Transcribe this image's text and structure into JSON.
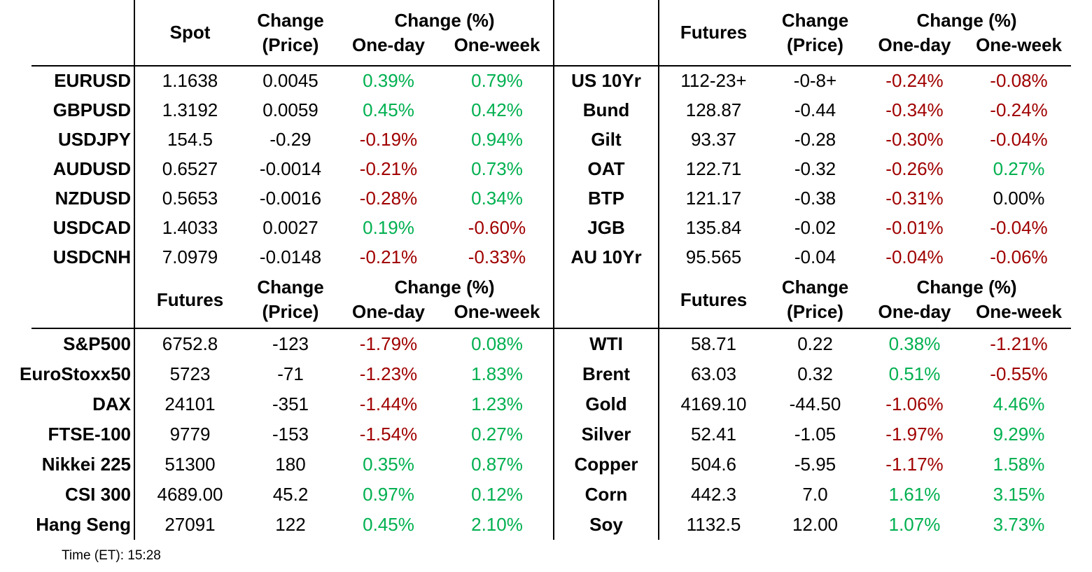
{
  "colors": {
    "positive": "#00B050",
    "negative": "#A00000",
    "neutral": "#000000"
  },
  "footer": {
    "time_label": "Time (ET): 15:28"
  },
  "tables": [
    {
      "id": "fx-spot",
      "price_header": "Spot",
      "change_header_line1": "Change",
      "change_header_line2": "(Price)",
      "pct_header": "Change (%)",
      "one_day_header": "One-day",
      "one_week_header": "One-week",
      "rows": [
        {
          "label": "EURUSD",
          "price": "1.1638",
          "change": "0.0045",
          "one_day": "0.39%",
          "one_day_dir": "pos",
          "one_week": "0.79%",
          "one_week_dir": "pos"
        },
        {
          "label": "GBPUSD",
          "price": "1.3192",
          "change": "0.0059",
          "one_day": "0.45%",
          "one_day_dir": "pos",
          "one_week": "0.42%",
          "one_week_dir": "pos"
        },
        {
          "label": "USDJPY",
          "price": "154.5",
          "change": "-0.29",
          "one_day": "-0.19%",
          "one_day_dir": "neg",
          "one_week": "0.94%",
          "one_week_dir": "pos"
        },
        {
          "label": "AUDUSD",
          "price": "0.6527",
          "change": "-0.0014",
          "one_day": "-0.21%",
          "one_day_dir": "neg",
          "one_week": "0.73%",
          "one_week_dir": "pos"
        },
        {
          "label": "NZDUSD",
          "price": "0.5653",
          "change": "-0.0016",
          "one_day": "-0.28%",
          "one_day_dir": "neg",
          "one_week": "0.34%",
          "one_week_dir": "pos"
        },
        {
          "label": "USDCAD",
          "price": "1.4033",
          "change": "0.0027",
          "one_day": "0.19%",
          "one_day_dir": "pos",
          "one_week": "-0.60%",
          "one_week_dir": "neg"
        },
        {
          "label": "USDCNH",
          "price": "7.0979",
          "change": "-0.0148",
          "one_day": "-0.21%",
          "one_day_dir": "neg",
          "one_week": "-0.33%",
          "one_week_dir": "neg"
        }
      ]
    },
    {
      "id": "bond-futures",
      "price_header": "Futures",
      "change_header_line1": "Change",
      "change_header_line2": "(Price)",
      "pct_header": "Change (%)",
      "one_day_header": "One-day",
      "one_week_header": "One-week",
      "rows": [
        {
          "label": "US 10Yr",
          "price": "112-23+",
          "change": "-0-8+",
          "one_day": "-0.24%",
          "one_day_dir": "neg",
          "one_week": "-0.08%",
          "one_week_dir": "neg"
        },
        {
          "label": "Bund",
          "price": "128.87",
          "change": "-0.44",
          "one_day": "-0.34%",
          "one_day_dir": "neg",
          "one_week": "-0.24%",
          "one_week_dir": "neg"
        },
        {
          "label": "Gilt",
          "price": "93.37",
          "change": "-0.28",
          "one_day": "-0.30%",
          "one_day_dir": "neg",
          "one_week": "-0.04%",
          "one_week_dir": "neg"
        },
        {
          "label": "OAT",
          "price": "122.71",
          "change": "-0.32",
          "one_day": "-0.26%",
          "one_day_dir": "neg",
          "one_week": "0.27%",
          "one_week_dir": "pos"
        },
        {
          "label": "BTP",
          "price": "121.17",
          "change": "-0.38",
          "one_day": "-0.31%",
          "one_day_dir": "neg",
          "one_week": "0.00%",
          "one_week_dir": "neu"
        },
        {
          "label": "JGB",
          "price": "135.84",
          "change": "-0.02",
          "one_day": "-0.01%",
          "one_day_dir": "neg",
          "one_week": "-0.04%",
          "one_week_dir": "neg"
        },
        {
          "label": "AU 10Yr",
          "price": "95.565",
          "change": "-0.04",
          "one_day": "-0.04%",
          "one_day_dir": "neg",
          "one_week": "-0.06%",
          "one_week_dir": "neg"
        }
      ]
    },
    {
      "id": "equity-futures",
      "price_header": "Futures",
      "change_header_line1": "Change",
      "change_header_line2": "(Price)",
      "pct_header": "Change (%)",
      "one_day_header": "One-day",
      "one_week_header": "One-week",
      "rows": [
        {
          "label": "S&P500",
          "price": "6752.8",
          "change": "-123",
          "one_day": "-1.79%",
          "one_day_dir": "neg",
          "one_week": "0.08%",
          "one_week_dir": "pos"
        },
        {
          "label": "EuroStoxx50",
          "price": "5723",
          "change": "-71",
          "one_day": "-1.23%",
          "one_day_dir": "neg",
          "one_week": "1.83%",
          "one_week_dir": "pos"
        },
        {
          "label": "DAX",
          "price": "24101",
          "change": "-351",
          "one_day": "-1.44%",
          "one_day_dir": "neg",
          "one_week": "1.23%",
          "one_week_dir": "pos"
        },
        {
          "label": "FTSE-100",
          "price": "9779",
          "change": "-153",
          "one_day": "-1.54%",
          "one_day_dir": "neg",
          "one_week": "0.27%",
          "one_week_dir": "pos"
        },
        {
          "label": "Nikkei 225",
          "price": "51300",
          "change": "180",
          "one_day": "0.35%",
          "one_day_dir": "pos",
          "one_week": "0.87%",
          "one_week_dir": "pos"
        },
        {
          "label": "CSI 300",
          "price": "4689.00",
          "change": "45.2",
          "one_day": "0.97%",
          "one_day_dir": "pos",
          "one_week": "0.12%",
          "one_week_dir": "pos"
        },
        {
          "label": "Hang Seng",
          "price": "27091",
          "change": "122",
          "one_day": "0.45%",
          "one_day_dir": "pos",
          "one_week": "2.10%",
          "one_week_dir": "pos"
        }
      ]
    },
    {
      "id": "commodity-futures",
      "price_header": "Futures",
      "change_header_line1": "Change",
      "change_header_line2": "(Price)",
      "pct_header": "Change (%)",
      "one_day_header": "One-day",
      "one_week_header": "One-week",
      "rows": [
        {
          "label": "WTI",
          "price": "58.71",
          "change": "0.22",
          "one_day": "0.38%",
          "one_day_dir": "pos",
          "one_week": "-1.21%",
          "one_week_dir": "neg"
        },
        {
          "label": "Brent",
          "price": "63.03",
          "change": "0.32",
          "one_day": "0.51%",
          "one_day_dir": "pos",
          "one_week": "-0.55%",
          "one_week_dir": "neg"
        },
        {
          "label": "Gold",
          "price": "4169.10",
          "change": "-44.50",
          "one_day": "-1.06%",
          "one_day_dir": "neg",
          "one_week": "4.46%",
          "one_week_dir": "pos"
        },
        {
          "label": "Silver",
          "price": "52.41",
          "change": "-1.05",
          "one_day": "-1.97%",
          "one_day_dir": "neg",
          "one_week": "9.29%",
          "one_week_dir": "pos"
        },
        {
          "label": "Copper",
          "price": "504.6",
          "change": "-5.95",
          "one_day": "-1.17%",
          "one_day_dir": "neg",
          "one_week": "1.58%",
          "one_week_dir": "pos"
        },
        {
          "label": "Corn",
          "price": "442.3",
          "change": "7.0",
          "one_day": "1.61%",
          "one_day_dir": "pos",
          "one_week": "3.15%",
          "one_week_dir": "pos"
        },
        {
          "label": "Soy",
          "price": "1132.5",
          "change": "12.00",
          "one_day": "1.07%",
          "one_day_dir": "pos",
          "one_week": "3.73%",
          "one_week_dir": "pos"
        }
      ]
    }
  ]
}
